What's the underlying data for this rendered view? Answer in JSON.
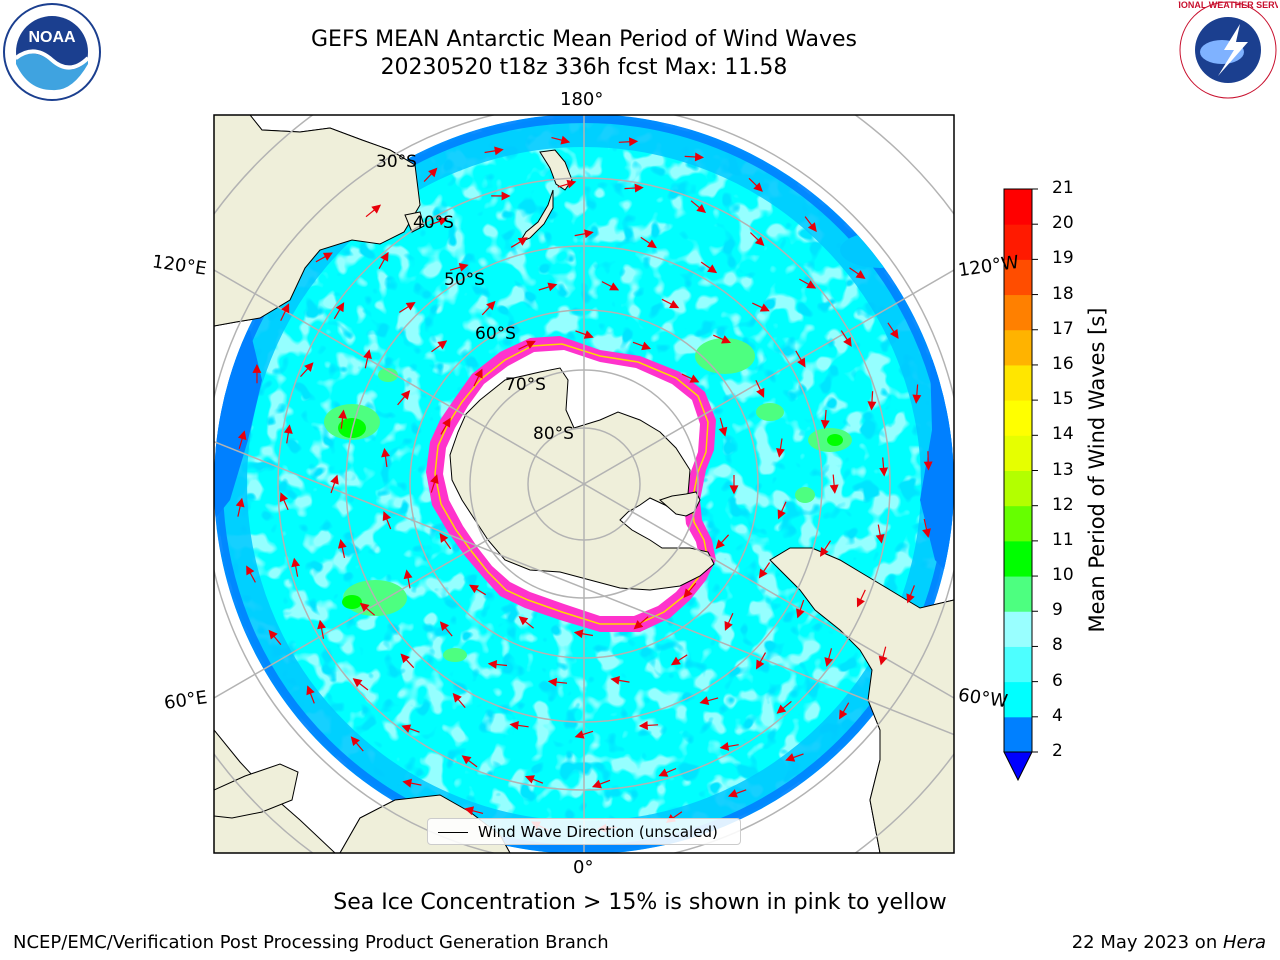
{
  "header": {
    "title_line1": "GEFS MEAN Antarctic Mean Period of Wind Waves",
    "title_line2": "20230520 t18z 336h fcst   Max: 11.58"
  },
  "logos": {
    "left": {
      "icon": "noaa-logo-icon",
      "text": "NOAA"
    },
    "right": {
      "icon": "national-weather-service-logo-icon",
      "text": "NATIONAL WEATHER SERVICE"
    }
  },
  "map": {
    "projection": "south-polar-stereographic",
    "meridian_labels": [
      "180°",
      "120°E",
      "120°W",
      "60°E",
      "60°W",
      "0°"
    ],
    "parallel_labels": [
      "30°S",
      "40°S",
      "50°S",
      "60°S",
      "70°S",
      "80°S"
    ],
    "legend": "Wind Wave Direction (unscaled)",
    "colors": {
      "land": "#efefda",
      "coast": "#000000",
      "grid": "#b3b3b3",
      "arrow": "#e8000b",
      "ice": "#ff33cc",
      "ocean_main": "#00ffff",
      "ocean_light": "#4dffff",
      "ocean_mid": "#00c8ff",
      "ocean_dark": "#0080ff"
    }
  },
  "colorbar": {
    "label": "Mean Period of Wind Waves [s]",
    "ticks": [
      "2",
      "4",
      "6",
      "8",
      "9",
      "10",
      "11",
      "12",
      "13",
      "14",
      "15",
      "16",
      "17",
      "18",
      "19",
      "20",
      "21"
    ],
    "colors": [
      "#0080ff",
      "#00ffff",
      "#4dffff",
      "#99ffff",
      "#4dff80",
      "#00ff00",
      "#66ff00",
      "#b3ff00",
      "#e6ff00",
      "#ffff00",
      "#ffe600",
      "#ffb300",
      "#ff8000",
      "#ff4d00",
      "#ff1a00",
      "#ff0000"
    ],
    "extend_color": "#0000ff"
  },
  "footer": {
    "note": "Sea Ice Concentration > 15% is shown in pink to yellow",
    "left": "NCEP/EMC/Verification Post Processing Product Generation Branch",
    "right_prefix": "22 May 2023 on ",
    "right_host": "Hera"
  }
}
